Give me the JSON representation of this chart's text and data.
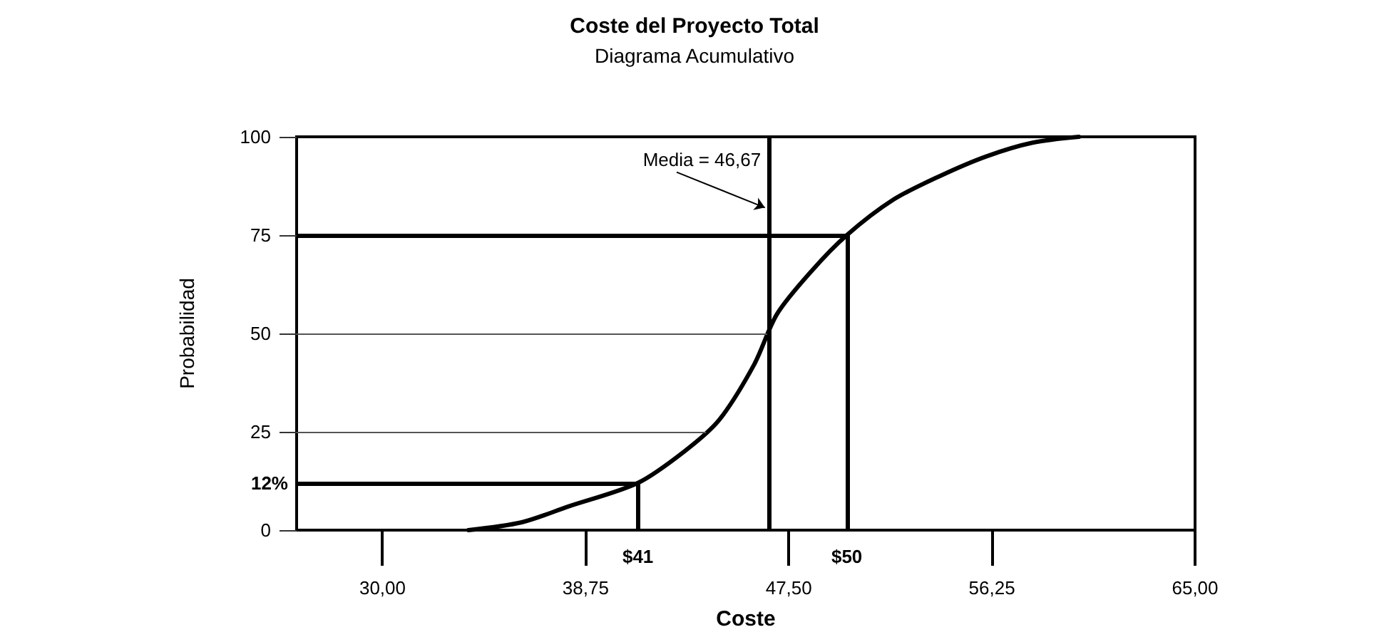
{
  "chart_data": {
    "type": "line",
    "title": "Coste del Proyecto Total",
    "subtitle": "Diagrama Acumulativo",
    "xlabel": "Coste",
    "ylabel": "Probabilidad",
    "series": [
      {
        "color": "#000000",
        "x": [
          33.7,
          36,
          38,
          41,
          43,
          44.5,
          46,
          47,
          48.5,
          50,
          52,
          54,
          56,
          58,
          60
        ],
        "values": [
          0,
          2,
          6,
          12,
          20,
          28,
          42,
          55,
          66,
          75,
          84,
          90,
          95,
          98.5,
          100
        ]
      }
    ],
    "xlim": [
      26.3,
      65
    ],
    "xticks": [
      {
        "value": 30,
        "label": "30,00"
      },
      {
        "value": 38.75,
        "label": "38,75"
      },
      {
        "value": 47.5,
        "label": "47,50"
      },
      {
        "value": 56.25,
        "label": "56,25"
      },
      {
        "value": 65,
        "label": "65,00"
      }
    ],
    "ylim": [
      0,
      100
    ],
    "yticks": [
      0,
      25,
      50,
      75,
      100
    ],
    "marker": "none",
    "grid": false,
    "ref_lines": [
      {
        "axis": "y",
        "value": 12,
        "label": "12%"
      },
      {
        "axis": "y",
        "value": 75
      },
      {
        "axis": "y",
        "value": 25,
        "color": "#555555"
      },
      {
        "axis": "y",
        "value": 50,
        "color": "#555555"
      },
      {
        "axis": "x",
        "value": 41,
        "label": "$41"
      },
      {
        "axis": "x",
        "value": 50,
        "label": "$50"
      },
      {
        "axis": "x",
        "value": 46.67
      }
    ],
    "annotations": [
      {
        "text": "Media = 46,67",
        "x": 46.67,
        "y": 82
      }
    ]
  }
}
